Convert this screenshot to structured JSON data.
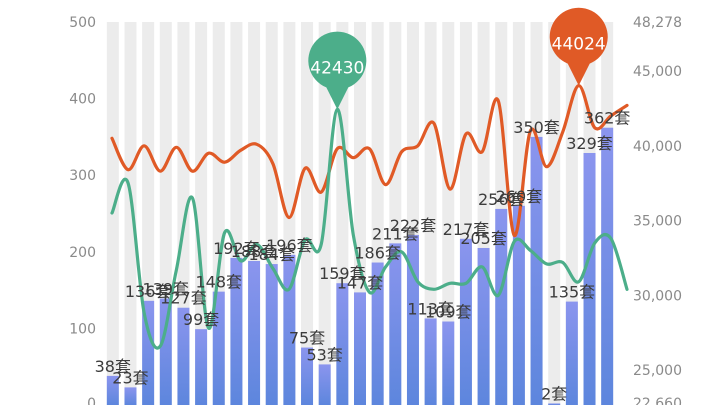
{
  "chart_data": {
    "type": "bar",
    "colors": {
      "bar_top": "#8b95ee",
      "bar_bottom": "#5d86dd",
      "track": "#ececec",
      "orange": "#e05a26",
      "green": "#4cae8a"
    },
    "y_left": {
      "ticks": [
        "0",
        "100",
        "200",
        "300",
        "400",
        "500"
      ],
      "min": 0,
      "max": 500
    },
    "y_right": {
      "ticks": [
        "22,660",
        "25,000",
        "30,000",
        "35,000",
        "40,000",
        "45,000",
        "48,278"
      ],
      "min": 22660,
      "max": 48278
    },
    "grid": false,
    "series": [
      {
        "type": "bar",
        "unit_suffix": "套",
        "values": [
          38,
          23,
          136,
          139,
          127,
          99,
          148,
          192,
          188,
          184,
          196,
          75,
          53,
          159,
          147,
          186,
          211,
          222,
          113,
          109,
          217,
          205,
          256,
          260,
          350,
          2,
          135,
          329,
          362
        ],
        "labels": [
          "38套",
          "23套",
          "136套",
          "139套",
          "127套",
          "99套",
          "148套",
          "192套",
          "188套",
          "184套",
          "196套",
          "75套",
          "53套",
          "159套",
          "147套",
          "186套",
          "211套",
          "222套",
          "113套",
          "109套",
          "217套",
          "205套",
          "256套",
          "260套",
          "350套",
          "2套",
          "135套",
          "329套",
          "362套"
        ]
      },
      {
        "type": "line",
        "axis": "right",
        "values": [
          40500,
          38400,
          40000,
          38300,
          39900,
          38300,
          39500,
          38900,
          39700,
          40100,
          38800,
          35200,
          38500,
          36900,
          39800,
          39200,
          39800,
          37400,
          39600,
          40000,
          41500,
          37100,
          40800,
          39600,
          43000,
          34000,
          41000,
          38600,
          40900,
          44024,
          41200,
          42000,
          42700
        ]
      },
      {
        "type": "line",
        "axis": "right",
        "values": [
          35500,
          37500,
          28800,
          26600,
          31700,
          36500,
          27800,
          34200,
          32300,
          33400,
          31800,
          30400,
          33700,
          33400,
          42430,
          34000,
          30200,
          31900,
          32900,
          30900,
          30400,
          30800,
          30800,
          31900,
          30000,
          33600,
          33000,
          32100,
          32200,
          30900,
          33500,
          33800,
          30400
        ]
      }
    ],
    "pins": [
      {
        "value": "42430",
        "series": 2,
        "point": 14
      },
      {
        "value": "44024",
        "series": 1,
        "point": 29
      }
    ]
  }
}
